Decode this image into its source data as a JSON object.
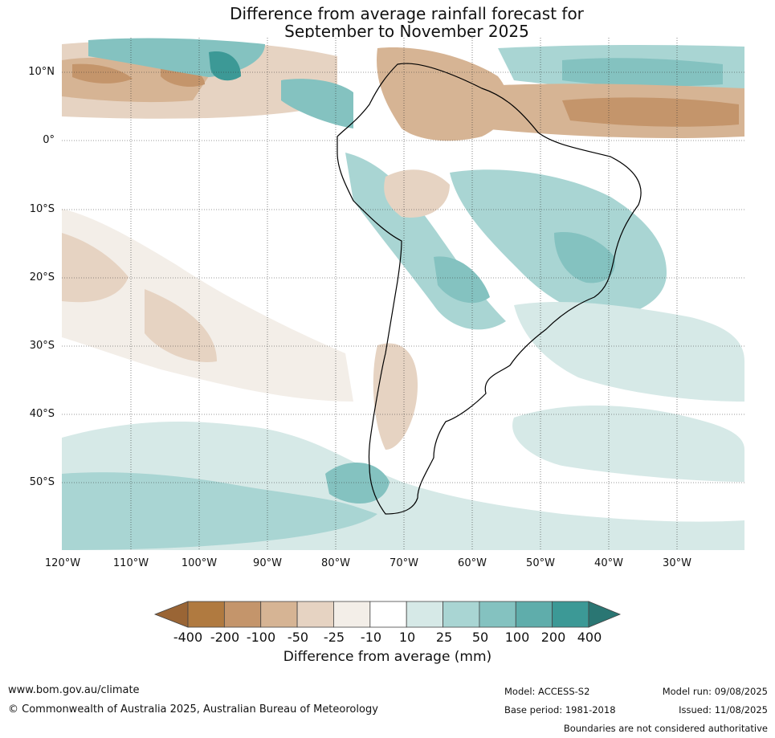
{
  "title": {
    "line1": "Difference from average rainfall forecast for",
    "line2": "September to November 2025"
  },
  "map": {
    "lat_labels": [
      "10°N",
      "0°",
      "10°S",
      "20°S",
      "30°S",
      "40°S",
      "50°S"
    ],
    "lon_labels": [
      "120°W",
      "110°W",
      "100°W",
      "90°W",
      "80°W",
      "70°W",
      "60°W",
      "50°W",
      "40°W",
      "30°W"
    ],
    "gridlines": true
  },
  "colorbar": {
    "ticks": [
      "-400",
      "-200",
      "-100",
      "-50",
      "-25",
      "-10",
      "10",
      "25",
      "50",
      "100",
      "200",
      "400"
    ],
    "colors": [
      "#9a6535",
      "#b07a40",
      "#c4956b",
      "#d6b494",
      "#e6d3c2",
      "#f3eee8",
      "#ffffff",
      "#d6e9e7",
      "#a9d5d3",
      "#84c2c0",
      "#5fadab",
      "#3c9996",
      "#2a7673"
    ],
    "title": "Difference from average (mm)"
  },
  "footer": {
    "url": "www.bom.gov.au/climate",
    "copyright": "© Commonwealth of Australia 2025, Australian Bureau of Meteorology",
    "model": "Model: ACCESS-S2",
    "base_period": "Base period: 1981-2018",
    "model_run": "Model run: 09/08/2025",
    "issued": "Issued: 11/08/2025",
    "disclaimer": "Boundaries are not considered authoritative"
  }
}
